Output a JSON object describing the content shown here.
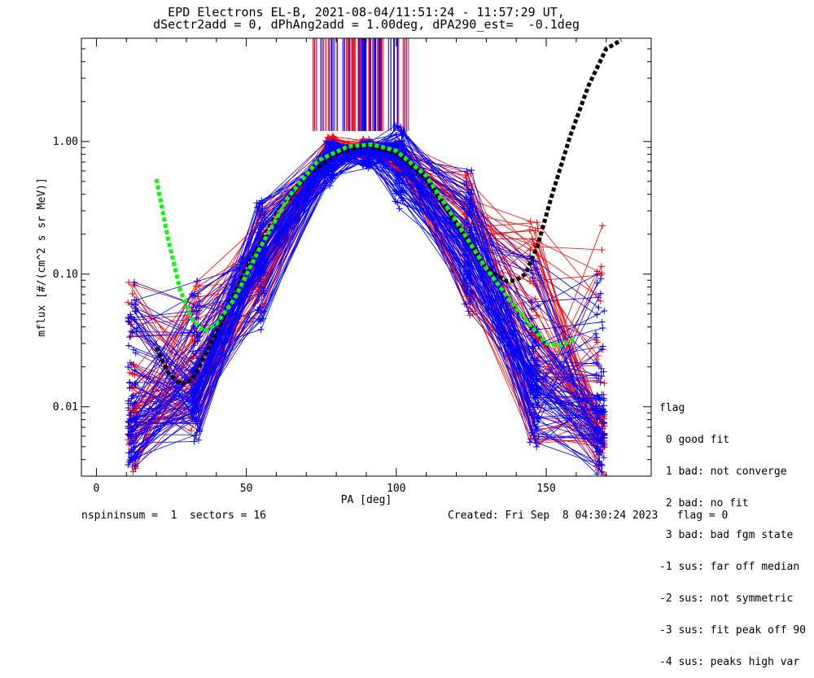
{
  "title": {
    "line1": "EPD Electrons EL-B, 2021-08-04/11:51:24 - 11:57:29 UT,",
    "line2": "dSectr2add = 0, dPhAng2add = 1.00deg, dPA290_est=  -0.1deg"
  },
  "footer": {
    "left": "nspininsum =  1  sectors = 16",
    "right": "Created: Fri Sep  8 04:30:24 2023   flag = 0"
  },
  "legend": {
    "header": "flag",
    "items": [
      " 0 good fit",
      " 1 bad: not converge",
      " 2 bad: no fit",
      " 3 bad: bad fgm state",
      "-1 sus: far off median",
      "-2 sus: not symmetric",
      "-3 sus: fit peak off 90",
      "-4 sus: peaks high var"
    ]
  },
  "colors": {
    "series_red": "#ff0000",
    "series_blue": "#0000ff",
    "fit_black": "#000000",
    "fit_green": "#00ff00"
  },
  "chart_data": {
    "type": "line",
    "xlabel": "PA [deg]",
    "ylabel": "mflux [#/(cm^2 s sr MeV)]",
    "xlim": [
      -5,
      185
    ],
    "ylim": [
      0.003,
      6
    ],
    "yscale": "log",
    "x_ticks": [
      0,
      50,
      100,
      150
    ],
    "x_tick_labels": [
      "0",
      "50",
      "100",
      "150"
    ],
    "y_ticks": [
      0.01,
      0.1,
      1.0
    ],
    "y_tick_labels": [
      "0.01",
      "0.10",
      "1.00"
    ],
    "grid": false,
    "legend_position": "right",
    "pa_bins": [
      12,
      33,
      55,
      78,
      90,
      101,
      124,
      146,
      168
    ],
    "series": [
      {
        "name": "red",
        "color": "#ff0000",
        "envelope_low": [
          0.003,
          0.006,
          0.05,
          0.55,
          0.7,
          0.55,
          0.04,
          0.004,
          0.003
        ],
        "envelope_high": [
          0.09,
          0.09,
          0.35,
          1.1,
          1.05,
          1.05,
          0.6,
          0.25,
          0.28
        ],
        "median": [
          0.009,
          0.015,
          0.16,
          0.85,
          0.9,
          0.8,
          0.18,
          0.025,
          0.008
        ]
      },
      {
        "name": "blue",
        "color": "#0000ff",
        "envelope_low": [
          0.003,
          0.005,
          0.03,
          0.45,
          0.6,
          0.3,
          0.05,
          0.004,
          0.003
        ],
        "envelope_high": [
          0.09,
          0.09,
          0.36,
          1.0,
          1.0,
          1.35,
          0.65,
          0.14,
          0.1
        ],
        "median": [
          0.008,
          0.014,
          0.13,
          0.8,
          0.85,
          0.75,
          0.16,
          0.02,
          0.009
        ]
      }
    ],
    "fits": [
      {
        "name": "black",
        "color": "#000000",
        "x": [
          20,
          24,
          28,
          32,
          36,
          42,
          50,
          60,
          70,
          80,
          90,
          100,
          110,
          120,
          130,
          137,
          140,
          143,
          147,
          152,
          158,
          164,
          170,
          175
        ],
        "y": [
          0.028,
          0.018,
          0.0148,
          0.016,
          0.024,
          0.045,
          0.11,
          0.28,
          0.55,
          0.82,
          0.93,
          0.82,
          0.52,
          0.24,
          0.11,
          0.088,
          0.09,
          0.1,
          0.16,
          0.4,
          1.1,
          2.6,
          5.0,
          5.8
        ]
      },
      {
        "name": "green",
        "color": "#00ff00",
        "x": [
          20,
          24,
          28,
          32,
          36,
          40,
          46,
          54,
          64,
          74,
          84,
          92,
          100,
          110,
          120,
          130,
          140,
          146,
          150,
          155,
          160
        ],
        "y": [
          0.52,
          0.18,
          0.075,
          0.045,
          0.037,
          0.042,
          0.065,
          0.15,
          0.38,
          0.72,
          0.92,
          0.95,
          0.85,
          0.55,
          0.25,
          0.11,
          0.055,
          0.038,
          0.03,
          0.029,
          0.033
        ]
      }
    ],
    "saturated_region": {
      "x_range": [
        72,
        105
      ],
      "bottom_y": 1.2
    }
  }
}
